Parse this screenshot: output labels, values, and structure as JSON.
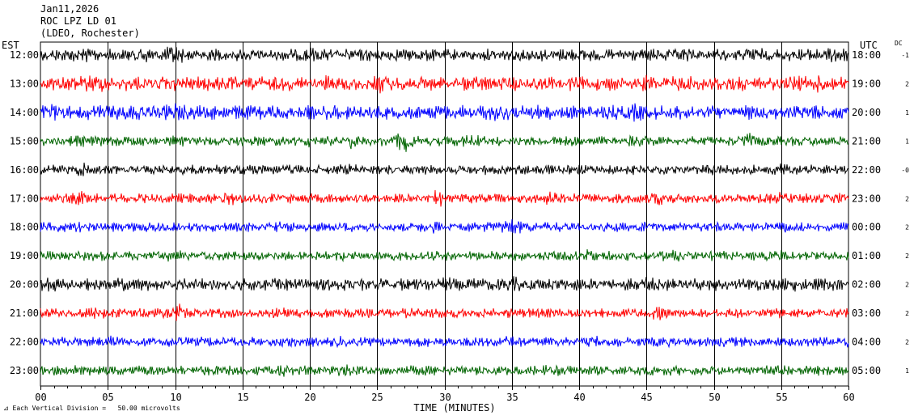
{
  "header": {
    "date": "Jan11,2026",
    "station": "ROC LPZ LD 01",
    "network": "(LDEO, Rochester)"
  },
  "left_tz": "EST",
  "right_tz": "UTC",
  "dc_header": "DC",
  "footer_note": "Each Vertical Division =   50.00 microvolts",
  "colors": {
    "cycle": [
      "#000000",
      "#ff0000",
      "#0000ff",
      "#006400"
    ],
    "grid": "#000000"
  },
  "chart_data": {
    "type": "line",
    "title": "",
    "xlabel": "TIME (MINUTES)",
    "ylabel": "",
    "xlim": [
      0,
      60
    ],
    "x_ticks": [
      "00",
      "05",
      "10",
      "15",
      "20",
      "25",
      "30",
      "35",
      "40",
      "45",
      "50",
      "55",
      "60"
    ],
    "grid": true,
    "rows": [
      {
        "est": "12:00",
        "utc": "18:00",
        "dc": "-1",
        "color": "#000000",
        "amp": 5,
        "bursts": [
          [
            3,
            1.5
          ],
          [
            7.5,
            1.4
          ],
          [
            10,
            1.8
          ],
          [
            14,
            1.0
          ],
          [
            20,
            1.6
          ],
          [
            48,
            1.2
          ],
          [
            53,
            1.4
          ],
          [
            59,
            1.4
          ]
        ]
      },
      {
        "est": "13:00",
        "utc": "19:00",
        "dc": "2",
        "color": "#ff0000",
        "amp": 6,
        "bursts": [
          [
            4,
            1.3
          ],
          [
            17,
            1.3
          ],
          [
            21,
            1.3
          ],
          [
            23,
            1.3
          ],
          [
            25.5,
            1.5
          ],
          [
            45,
            1.3
          ],
          [
            56,
            1.3
          ],
          [
            58,
            1.3
          ]
        ]
      },
      {
        "est": "14:00",
        "utc": "20:00",
        "dc": "1",
        "color": "#0000ff",
        "amp": 6,
        "bursts": [
          [
            1,
            1.3
          ],
          [
            6,
            1.3
          ],
          [
            10,
            1.4
          ],
          [
            22,
            1.2
          ],
          [
            34,
            1.3
          ],
          [
            44,
            1.3
          ],
          [
            57,
            1.2
          ]
        ]
      },
      {
        "est": "15:00",
        "utc": "21:00",
        "dc": "1",
        "color": "#006400",
        "amp": 4,
        "bursts": [
          [
            3,
            1.4
          ],
          [
            10,
            1.4
          ],
          [
            19.5,
            1.7
          ],
          [
            23,
            1.8
          ],
          [
            27,
            2.8
          ],
          [
            32,
            1.6
          ],
          [
            44.5,
            1.7
          ],
          [
            52.5,
            1.8
          ]
        ]
      },
      {
        "est": "16:00",
        "utc": "22:00",
        "dc": "-0",
        "color": "#000000",
        "amp": 4,
        "bursts": [
          [
            3,
            1.6
          ],
          [
            23,
            1.3
          ],
          [
            37,
            1.3
          ],
          [
            50,
            1.3
          ],
          [
            55,
            1.5
          ],
          [
            59,
            1.3
          ]
        ]
      },
      {
        "est": "17:00",
        "utc": "23:00",
        "dc": "2",
        "color": "#ff0000",
        "amp": 4,
        "bursts": [
          [
            3,
            1.5
          ],
          [
            14,
            1.6
          ],
          [
            29.5,
            1.8
          ],
          [
            38,
            1.5
          ],
          [
            46,
            1.5
          ],
          [
            55,
            1.4
          ],
          [
            60,
            1.6
          ]
        ]
      },
      {
        "est": "18:00",
        "utc": "00:00",
        "dc": "2",
        "color": "#0000ff",
        "amp": 4,
        "bursts": [
          [
            3,
            1.4
          ],
          [
            18,
            1.4
          ],
          [
            29,
            1.4
          ],
          [
            35,
            1.9
          ],
          [
            45,
            1.4
          ],
          [
            55,
            1.4
          ]
        ]
      },
      {
        "est": "19:00",
        "utc": "01:00",
        "dc": "2",
        "color": "#006400",
        "amp": 4,
        "bursts": [
          [
            10,
            1.3
          ],
          [
            22.5,
            1.6
          ],
          [
            40.5,
            2.1
          ],
          [
            47,
            1.3
          ],
          [
            55,
            1.3
          ]
        ]
      },
      {
        "est": "20:00",
        "utc": "02:00",
        "dc": "2",
        "color": "#000000",
        "amp": 5,
        "bursts": [
          [
            0.5,
            1.4
          ],
          [
            6,
            1.3
          ],
          [
            30,
            1.3
          ],
          [
            35,
            1.4
          ],
          [
            45,
            1.3
          ],
          [
            56,
            1.4
          ]
        ]
      },
      {
        "est": "21:00",
        "utc": "03:00",
        "dc": "2",
        "color": "#ff0000",
        "amp": 4,
        "bursts": [
          [
            4,
            1.3
          ],
          [
            10.5,
            2.1
          ],
          [
            18,
            1.5
          ],
          [
            46,
            1.5
          ],
          [
            55,
            1.3
          ]
        ]
      },
      {
        "est": "22:00",
        "utc": "04:00",
        "dc": "2",
        "color": "#0000ff",
        "amp": 4,
        "bursts": [
          [
            5,
            1.4
          ],
          [
            10,
            1.4
          ],
          [
            22,
            1.3
          ],
          [
            35,
            1.3
          ],
          [
            41,
            1.3
          ],
          [
            50,
            1.3
          ],
          [
            60,
            1.3
          ]
        ]
      },
      {
        "est": "23:00",
        "utc": "05:00",
        "dc": "1",
        "color": "#006400",
        "amp": 4,
        "bursts": [
          [
            3,
            1.3
          ],
          [
            18,
            1.4
          ],
          [
            22.5,
            1.4
          ],
          [
            38,
            1.5
          ],
          [
            45,
            1.4
          ],
          [
            55,
            1.3
          ]
        ]
      }
    ]
  }
}
